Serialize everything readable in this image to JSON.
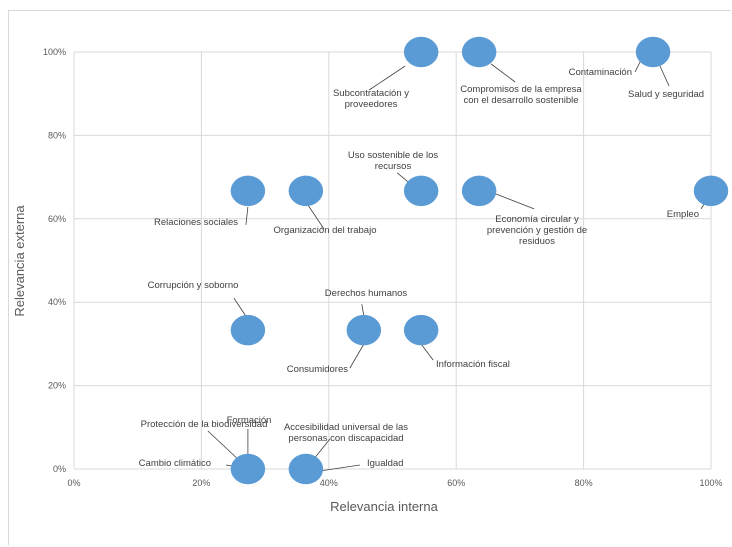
{
  "chart_data": {
    "type": "scatter",
    "title": "",
    "xlabel": "Relevancia interna",
    "ylabel": "Relevancia externa",
    "xlim": [
      0,
      100
    ],
    "ylim": [
      0,
      100
    ],
    "x_ticks": [
      "0%",
      "20%",
      "40%",
      "60%",
      "80%",
      "100%"
    ],
    "y_ticks": [
      "0%",
      "20%",
      "40%",
      "60%",
      "80%",
      "100%"
    ],
    "grid": true,
    "legend": "none",
    "marker_color": "#5b9bd5",
    "points": [
      {
        "label": "Subcontratación y proveedores",
        "x": 54.5,
        "y": 100
      },
      {
        "label": "Compromisos de la empresa con el desarrollo sostenible",
        "x": 63.6,
        "y": 100
      },
      {
        "label": "Contaminación",
        "x": 90.9,
        "y": 100
      },
      {
        "label": "Salud y seguridad",
        "x": 90.9,
        "y": 100
      },
      {
        "label": "Relaciones sociales",
        "x": 27.3,
        "y": 66.7
      },
      {
        "label": "Organización del trabajo",
        "x": 36.4,
        "y": 66.7
      },
      {
        "label": "Uso sostenible de los recursos",
        "x": 54.5,
        "y": 66.7
      },
      {
        "label": "Economía circular y prevención y gestión de residuos",
        "x": 63.6,
        "y": 66.7
      },
      {
        "label": "Empleo",
        "x": 100,
        "y": 66.7
      },
      {
        "label": "Corrupción y soborno",
        "x": 27.3,
        "y": 33.3
      },
      {
        "label": "Derechos humanos",
        "x": 45.5,
        "y": 33.3
      },
      {
        "label": "Consumidores",
        "x": 45.5,
        "y": 33.3
      },
      {
        "label": "Información fiscal",
        "x": 54.5,
        "y": 33.3
      },
      {
        "label": "Protección de la biodiversidad",
        "x": 27.3,
        "y": 0
      },
      {
        "label": "Formación",
        "x": 27.3,
        "y": 0
      },
      {
        "label": "Cambio climático",
        "x": 27.3,
        "y": 0
      },
      {
        "label": "Accesibilidad universal de las personas con discapacidad",
        "x": 36.4,
        "y": 0
      },
      {
        "label": "Igualdad",
        "x": 36.4,
        "y": 0
      }
    ]
  }
}
